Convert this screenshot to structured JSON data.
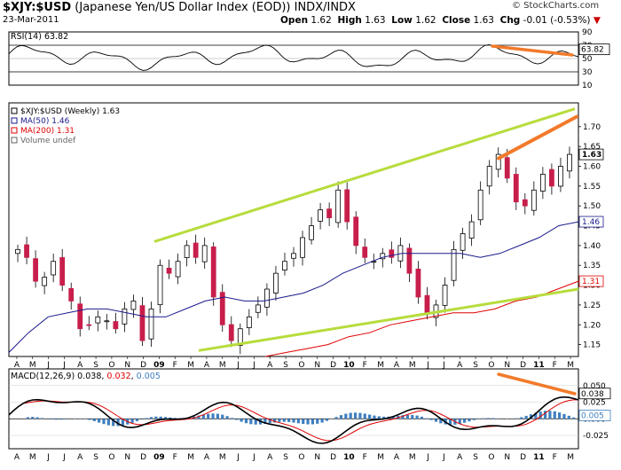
{
  "header": {
    "symbol": "$XJY:$USD",
    "description": "(Japanese Yen/US Dollar Index (EOD))",
    "exchange": "INDX/INDX",
    "date": "23-Mar-2011",
    "open_label": "Open",
    "open": "1.62",
    "high_label": "High",
    "high": "1.63",
    "low_label": "Low",
    "low": "1.62",
    "close_label": "Close",
    "close": "1.63",
    "chg_label": "Chg",
    "chg": "-0.01 (-0.53%)",
    "chg_arrow": "▼",
    "brand": "© StockCharts.com"
  },
  "colors": {
    "ma50": "#1a1a8c",
    "ma200": "#e00000",
    "trendline": "#b7dc3c",
    "annotation": "#f27a2b",
    "rsi_fill": "#4a7a3a",
    "histogram": "#3f7fbf",
    "candle": "#000000",
    "candle_down": "#c81e4b"
  },
  "chart_data": [
    {
      "type": "line",
      "panel": "RSI",
      "title": "RSI(14) 63.82",
      "current_value": "63.82",
      "ylim": [
        10,
        90
      ],
      "y_ticks": [
        "90",
        "70",
        "50",
        "30",
        "10"
      ],
      "levels": [
        70,
        30
      ]
    },
    {
      "type": "candlestick",
      "panel": "Price",
      "title": "$XJY:$USD (Weekly) 1.63",
      "legend": [
        "$XJY:$USD (Weekly) 1.63",
        "MA(50) 1.46",
        "MA(200) 1.31",
        "Volume undef"
      ],
      "ylim": [
        1.12,
        1.76
      ],
      "y_ticks": [
        "1.70",
        "1.65",
        "1.60",
        "1.55",
        "1.50",
        "1.45",
        "1.40",
        "1.35",
        "1.30",
        "1.25",
        "1.20",
        "1.15"
      ],
      "last_close": "1.63",
      "ma50_last": "1.46",
      "ma200_last": "1.31",
      "x_labels": [
        "A",
        "M",
        "J",
        "J",
        "A",
        "S",
        "O",
        "N",
        "D",
        "09",
        "F",
        "M",
        "A",
        "M",
        "J",
        "J",
        "A",
        "S",
        "O",
        "N",
        "D",
        "10",
        "F",
        "M",
        "A",
        "M",
        "J",
        "J",
        "A",
        "S",
        "O",
        "N",
        "D",
        "11",
        "F",
        "M"
      ],
      "close_by_week_approx": [
        1.39,
        1.37,
        1.31,
        1.32,
        1.36,
        1.3,
        1.26,
        1.19,
        1.2,
        1.22,
        1.21,
        1.19,
        1.24,
        1.26,
        1.16,
        1.24,
        1.35,
        1.33,
        1.36,
        1.4,
        1.37,
        1.4,
        1.27,
        1.2,
        1.16,
        1.19,
        1.22,
        1.25,
        1.29,
        1.33,
        1.36,
        1.38,
        1.42,
        1.45,
        1.49,
        1.47,
        1.54,
        1.46,
        1.4,
        1.37,
        1.36,
        1.38,
        1.37,
        1.4,
        1.33,
        1.27,
        1.23,
        1.25,
        1.3,
        1.39,
        1.43,
        1.46,
        1.54,
        1.6,
        1.63,
        1.57,
        1.51,
        1.5,
        1.54,
        1.58,
        1.55,
        1.6,
        1.63
      ],
      "ma50_approx": [
        1.13,
        1.18,
        1.22,
        1.23,
        1.24,
        1.24,
        1.23,
        1.22,
        1.22,
        1.24,
        1.26,
        1.27,
        1.26,
        1.26,
        1.27,
        1.28,
        1.3,
        1.33,
        1.35,
        1.37,
        1.38,
        1.38,
        1.38,
        1.38,
        1.37,
        1.38,
        1.4,
        1.42,
        1.45,
        1.46
      ],
      "ma200_approx": [
        1.12,
        1.13,
        1.14,
        1.15,
        1.17,
        1.18,
        1.2,
        1.21,
        1.22,
        1.23,
        1.23,
        1.24,
        1.26,
        1.27,
        1.29,
        1.31
      ]
    },
    {
      "type": "line",
      "panel": "MACD",
      "title": "MACD(12,26,9) 0.038, 0.032, 0.005",
      "macd": "0.038",
      "signal": "0.032",
      "histogram": "0.005",
      "y_ticks": [
        "0.050",
        "0.025",
        "0.000",
        "-0.025"
      ],
      "ylim": [
        -0.045,
        0.075
      ]
    }
  ]
}
